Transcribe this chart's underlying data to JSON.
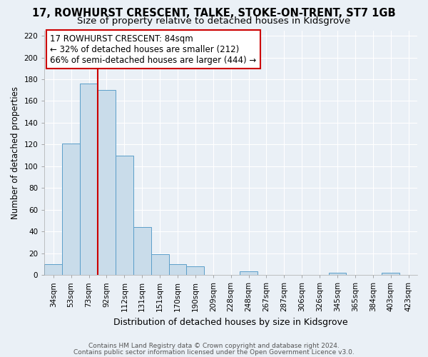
{
  "title": "17, ROWHURST CRESCENT, TALKE, STOKE-ON-TRENT, ST7 1GB",
  "subtitle": "Size of property relative to detached houses in Kidsgrove",
  "xlabel": "Distribution of detached houses by size in Kidsgrove",
  "ylabel": "Number of detached properties",
  "footer_line1": "Contains HM Land Registry data © Crown copyright and database right 2024.",
  "footer_line2": "Contains public sector information licensed under the Open Government Licence v3.0.",
  "categories": [
    "34sqm",
    "53sqm",
    "73sqm",
    "92sqm",
    "112sqm",
    "131sqm",
    "151sqm",
    "170sqm",
    "190sqm",
    "209sqm",
    "228sqm",
    "248sqm",
    "267sqm",
    "287sqm",
    "306sqm",
    "326sqm",
    "345sqm",
    "365sqm",
    "384sqm",
    "403sqm",
    "423sqm"
  ],
  "bar_heights": [
    10,
    121,
    176,
    170,
    110,
    44,
    19,
    10,
    8,
    0,
    0,
    3,
    0,
    0,
    0,
    0,
    2,
    0,
    0,
    2,
    0
  ],
  "bar_color": "#c9dcea",
  "bar_edge_color": "#5b9ec9",
  "ylim": [
    0,
    225
  ],
  "yticks": [
    0,
    20,
    40,
    60,
    80,
    100,
    120,
    140,
    160,
    180,
    200,
    220
  ],
  "vline_x_idx": 2,
  "vline_color": "#cc0000",
  "annotation_title": "17 ROWHURST CRESCENT: 84sqm",
  "annotation_line1": "← 32% of detached houses are smaller (212)",
  "annotation_line2": "66% of semi-detached houses are larger (444) →",
  "annotation_box_color": "#ffffff",
  "annotation_box_edge_color": "#cc0000",
  "bg_color": "#eaf0f6",
  "grid_color": "#ffffff",
  "title_fontsize": 10.5,
  "subtitle_fontsize": 9.5,
  "ylabel_fontsize": 8.5,
  "xlabel_fontsize": 9,
  "annotation_fontsize": 8.5,
  "tick_fontsize": 7.5,
  "footer_fontsize": 6.5
}
